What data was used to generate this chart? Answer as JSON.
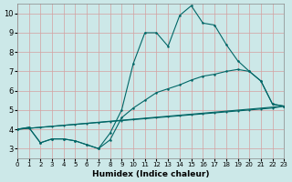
{
  "xlabel": "Humidex (Indice chaleur)",
  "background_color": "#cce8e8",
  "line_color": "#006666",
  "grid_color": "#e8d8d8",
  "xlim": [
    0,
    23
  ],
  "ylim": [
    2.5,
    10.5
  ],
  "xticks": [
    0,
    1,
    2,
    3,
    4,
    5,
    6,
    7,
    8,
    9,
    10,
    11,
    12,
    13,
    14,
    15,
    16,
    17,
    18,
    19,
    20,
    21,
    22,
    23
  ],
  "yticks": [
    3,
    4,
    5,
    6,
    7,
    8,
    9,
    10
  ],
  "line1_x": [
    0,
    1,
    2,
    3,
    4,
    5,
    6,
    7,
    8,
    9,
    10,
    11,
    12,
    13,
    14,
    15,
    16,
    17,
    18,
    19,
    20,
    21,
    22,
    23
  ],
  "line1_y": [
    4.0,
    4.1,
    3.3,
    3.5,
    3.5,
    3.4,
    3.2,
    3.0,
    3.8,
    5.0,
    7.4,
    9.0,
    9.0,
    8.3,
    9.9,
    10.4,
    9.5,
    9.4,
    8.4,
    7.55,
    7.0,
    6.5,
    5.3,
    5.2
  ],
  "line2_x": [
    0,
    1,
    2,
    3,
    4,
    5,
    6,
    7,
    8,
    9,
    10,
    11,
    12,
    13,
    14,
    15,
    16,
    17,
    18,
    19,
    20,
    21,
    22,
    23
  ],
  "line2_y": [
    4.0,
    4.1,
    3.3,
    3.5,
    3.5,
    3.4,
    3.2,
    3.0,
    3.45,
    4.6,
    5.1,
    5.5,
    5.9,
    6.1,
    6.3,
    6.55,
    6.75,
    6.85,
    7.0,
    7.1,
    7.0,
    6.5,
    5.3,
    5.2
  ],
  "line3_x": [
    0,
    1,
    2,
    3,
    4,
    5,
    6,
    7,
    8,
    9,
    10,
    11,
    12,
    13,
    14,
    15,
    16,
    17,
    18,
    19,
    20,
    21,
    22,
    23
  ],
  "line3_y": [
    4.0,
    4.05,
    4.1,
    4.15,
    4.2,
    4.25,
    4.3,
    4.35,
    4.4,
    4.45,
    4.5,
    4.55,
    4.6,
    4.65,
    4.7,
    4.75,
    4.8,
    4.85,
    4.9,
    4.95,
    5.0,
    5.05,
    5.1,
    5.2
  ],
  "line4_x": [
    0,
    23
  ],
  "line4_y": [
    4.0,
    5.2
  ]
}
